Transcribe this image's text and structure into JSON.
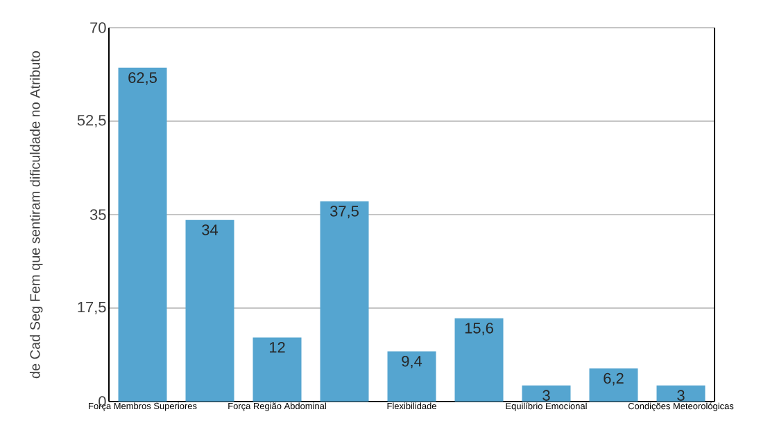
{
  "chart_data": {
    "type": "bar",
    "ylabel": "de Cad Seg Fem que sentiram dificuldade no Atributo",
    "categories": [
      "Força Membros Superiores",
      null,
      "Força Região Abdominal",
      null,
      "Flexibilidade",
      null,
      "Equilíbrio Emocional",
      null,
      "Condições Meteorológicas"
    ],
    "values": [
      62.5,
      34,
      12,
      37.5,
      9.4,
      15.6,
      3,
      6.2,
      3
    ],
    "value_labels": [
      "62,5",
      "34",
      "12",
      "37,5",
      "9,4",
      "15,6",
      "3",
      "6,2",
      "3"
    ],
    "color": "#55a5d0",
    "ylim": [
      0,
      70
    ],
    "yticks": [
      0,
      {
        "value": 17.5,
        "label": "17,5"
      },
      35,
      {
        "value": 52.5,
        "label": "52,5"
      },
      70
    ],
    "grid": "y"
  }
}
